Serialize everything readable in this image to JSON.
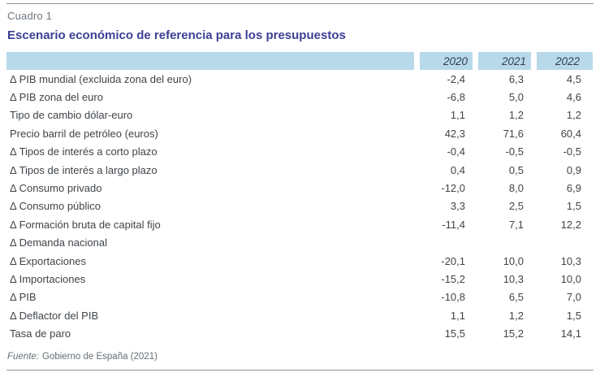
{
  "header": {
    "kicker": "Cuadro 1",
    "title": "Escenario económico de referencia para los presupuestos"
  },
  "chart_data": {
    "type": "table",
    "columns": [
      "2020",
      "2021",
      "2022"
    ],
    "rows": [
      {
        "label": "Δ PIB mundial (excluida zona del euro)",
        "values": [
          "-2,4",
          "6,3",
          "4,5"
        ]
      },
      {
        "label": "Δ PIB zona del euro",
        "values": [
          "-6,8",
          "5,0",
          "4,6"
        ]
      },
      {
        "label": "Tipo de cambio dólar-euro",
        "values": [
          "1,1",
          "1,2",
          "1,2"
        ]
      },
      {
        "label": "Precio barril de petróleo (euros)",
        "values": [
          "42,3",
          "71,6",
          "60,4"
        ]
      },
      {
        "label": "Δ Tipos de interés a corto plazo",
        "values": [
          "-0,4",
          "-0,5",
          "-0,5"
        ]
      },
      {
        "label": "Δ Tipos de interés a largo plazo",
        "values": [
          "0,4",
          "0,5",
          "0,9"
        ]
      },
      {
        "label": "Δ Consumo privado",
        "values": [
          "-12,0",
          "8,0",
          "6,9"
        ]
      },
      {
        "label": "Δ Consumo público",
        "values": [
          "3,3",
          "2,5",
          "1,5"
        ]
      },
      {
        "label": "Δ Formación bruta de capital fijo",
        "values": [
          "-11,4",
          "7,1",
          "12,2"
        ]
      },
      {
        "label": "Δ Demanda nacional",
        "values": [
          "",
          "",
          ""
        ]
      },
      {
        "label": "Δ Exportaciones",
        "values": [
          "-20,1",
          "10,0",
          "10,3"
        ]
      },
      {
        "label": "Δ Importaciones",
        "values": [
          "-15,2",
          "10,3",
          "10,0"
        ]
      },
      {
        "label": "Δ PIB",
        "values": [
          "-10,8",
          "6,5",
          "7,0"
        ]
      },
      {
        "label": "Δ Deflactor del PIB",
        "values": [
          "1,1",
          "1,2",
          "1,5"
        ]
      },
      {
        "label": "Tasa de paro",
        "values": [
          "15,5",
          "15,2",
          "14,1"
        ]
      }
    ]
  },
  "footer": {
    "source_prefix": "Fuente:",
    "source_text": "Gobierno de España (2021)"
  },
  "colors": {
    "header_bg": "#b8d9ea",
    "title": "#3d3f96",
    "kicker": "#6d7780",
    "body_text": "#3f4449",
    "year_text": "#2e3f52",
    "rule": "#8f959b",
    "footer_text": "#666f75"
  }
}
